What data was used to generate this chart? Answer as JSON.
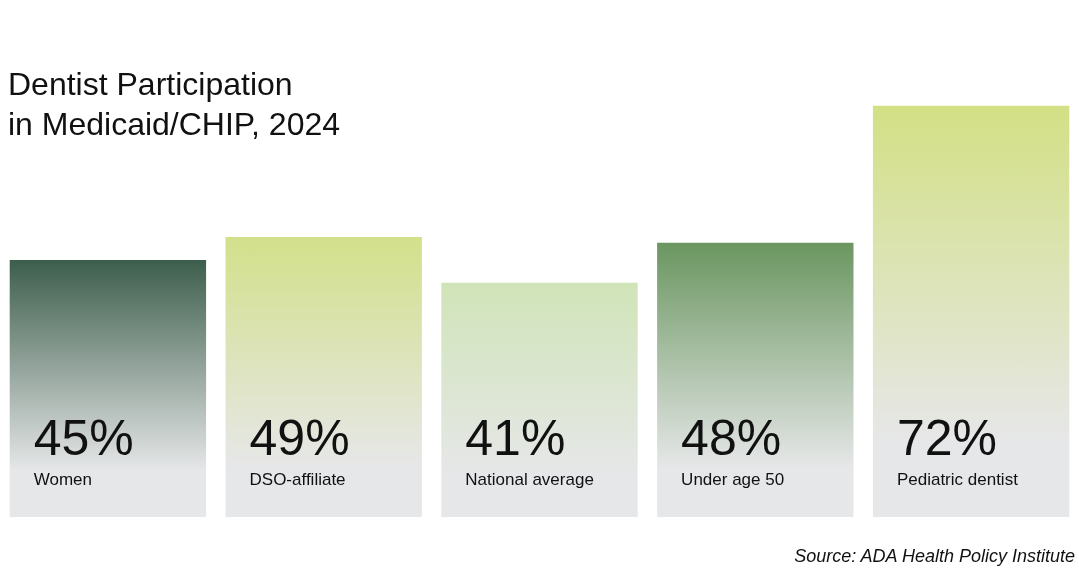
{
  "chart_data": {
    "type": "bar",
    "title": "Dentist Participation\nin Medicaid/CHIP, 2024",
    "categories": [
      "Women",
      "DSO-affiliate",
      "National average",
      "Under age 50",
      "Pediatric dentist"
    ],
    "values": [
      45,
      49,
      41,
      48,
      72
    ],
    "value_labels": [
      "45%",
      "49%",
      "41%",
      "48%",
      "72%"
    ],
    "colors": [
      "#3d5e4c",
      "#d3e08a",
      "#d0e4b8",
      "#6a9660",
      "#d3e085"
    ],
    "annotations": [
      "Source: ADA Health Policy Institute"
    ]
  }
}
